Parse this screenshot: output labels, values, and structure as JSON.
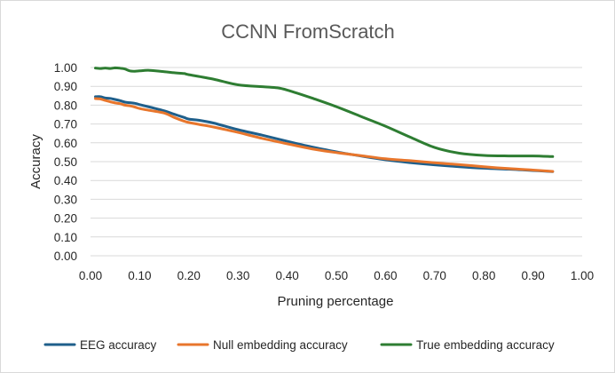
{
  "chart_data": {
    "type": "line",
    "title": "CCNN FromScratch",
    "xlabel": "Pruning percentage",
    "ylabel": "Accuracy",
    "xlim": [
      0.0,
      1.0
    ],
    "ylim": [
      0.0,
      1.0
    ],
    "x_ticks": [
      "0.00",
      "0.10",
      "0.20",
      "0.30",
      "0.40",
      "0.50",
      "0.60",
      "0.70",
      "0.80",
      "0.90",
      "1.00"
    ],
    "y_ticks": [
      "0.00",
      "0.10",
      "0.20",
      "0.30",
      "0.40",
      "0.50",
      "0.60",
      "0.70",
      "0.80",
      "0.90",
      "1.00"
    ],
    "grid": "horizontal",
    "legend_position": "bottom",
    "series": [
      {
        "name": "EEG accuracy",
        "color": "#1f5f8b",
        "x": [
          0.01,
          0.02,
          0.03,
          0.04,
          0.05,
          0.06,
          0.07,
          0.08,
          0.09,
          0.1,
          0.12,
          0.15,
          0.17,
          0.19,
          0.2,
          0.22,
          0.25,
          0.3,
          0.35,
          0.4,
          0.45,
          0.5,
          0.55,
          0.6,
          0.65,
          0.7,
          0.75,
          0.8,
          0.85,
          0.9,
          0.94
        ],
        "values": [
          0.845,
          0.845,
          0.838,
          0.836,
          0.83,
          0.824,
          0.816,
          0.813,
          0.81,
          0.803,
          0.79,
          0.77,
          0.752,
          0.735,
          0.726,
          0.72,
          0.705,
          0.67,
          0.64,
          0.608,
          0.578,
          0.552,
          0.53,
          0.51,
          0.495,
          0.483,
          0.473,
          0.465,
          0.46,
          0.453,
          0.447
        ]
      },
      {
        "name": "Null embedding accuracy",
        "color": "#e8762c",
        "x": [
          0.01,
          0.02,
          0.03,
          0.04,
          0.05,
          0.06,
          0.07,
          0.08,
          0.09,
          0.1,
          0.12,
          0.15,
          0.17,
          0.19,
          0.2,
          0.22,
          0.25,
          0.3,
          0.35,
          0.4,
          0.45,
          0.5,
          0.55,
          0.6,
          0.65,
          0.7,
          0.75,
          0.8,
          0.85,
          0.9,
          0.94
        ],
        "values": [
          0.835,
          0.833,
          0.825,
          0.818,
          0.812,
          0.808,
          0.8,
          0.796,
          0.79,
          0.782,
          0.772,
          0.758,
          0.735,
          0.715,
          0.708,
          0.698,
          0.684,
          0.655,
          0.623,
          0.595,
          0.568,
          0.548,
          0.532,
          0.515,
          0.505,
          0.494,
          0.484,
          0.473,
          0.463,
          0.455,
          0.448
        ]
      },
      {
        "name": "True embedding accuracy",
        "color": "#2e7d32",
        "x": [
          0.01,
          0.02,
          0.03,
          0.04,
          0.05,
          0.06,
          0.07,
          0.08,
          0.09,
          0.1,
          0.12,
          0.15,
          0.17,
          0.19,
          0.2,
          0.25,
          0.3,
          0.35,
          0.38,
          0.4,
          0.45,
          0.5,
          0.55,
          0.6,
          0.65,
          0.7,
          0.75,
          0.8,
          0.85,
          0.9,
          0.94
        ],
        "values": [
          0.997,
          0.995,
          0.997,
          0.995,
          0.998,
          0.996,
          0.992,
          0.982,
          0.98,
          0.982,
          0.985,
          0.978,
          0.972,
          0.968,
          0.962,
          0.938,
          0.908,
          0.898,
          0.892,
          0.88,
          0.838,
          0.792,
          0.74,
          0.688,
          0.63,
          0.575,
          0.545,
          0.533,
          0.53,
          0.53,
          0.527
        ]
      }
    ]
  }
}
